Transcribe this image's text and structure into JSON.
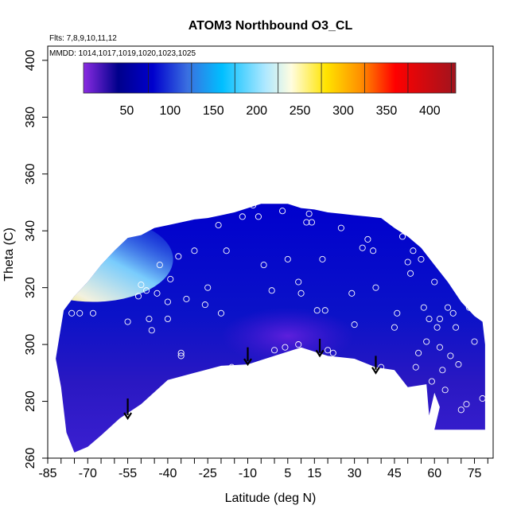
{
  "chart_data": {
    "type": "heatmap",
    "title": "ATOM3 Northbound O3_CL",
    "annotations": {
      "flights": "Flts: 7,8,9,10,11,12",
      "dates": "MMDD: 1014,1017,1019,1020,1023,1025"
    },
    "xlabel": "Latitude (deg N)",
    "ylabel": "Theta (C)",
    "xlim": [
      -85,
      82
    ],
    "ylim": [
      260,
      405
    ],
    "x_ticks": [
      -85,
      -70,
      -55,
      -40,
      -25,
      -10,
      5,
      15,
      30,
      45,
      60,
      75
    ],
    "y_ticks": [
      260,
      280,
      300,
      320,
      340,
      360,
      380,
      400
    ],
    "grid": false,
    "colorbar": {
      "position": "top",
      "labels": [
        50,
        100,
        150,
        200,
        250,
        300,
        350,
        400
      ],
      "range": [
        0,
        430
      ],
      "stops": [
        {
          "value": 0,
          "color": "#8a2be2"
        },
        {
          "value": 40,
          "color": "#00008b"
        },
        {
          "value": 80,
          "color": "#0000cd"
        },
        {
          "value": 120,
          "color": "#3a6fe0"
        },
        {
          "value": 160,
          "color": "#00bfff"
        },
        {
          "value": 210,
          "color": "#aee8ff"
        },
        {
          "value": 240,
          "color": "#fffde0"
        },
        {
          "value": 280,
          "color": "#ffe400"
        },
        {
          "value": 320,
          "color": "#ff9000"
        },
        {
          "value": 360,
          "color": "#ff0000"
        },
        {
          "value": 430,
          "color": "#a0141e"
        }
      ]
    },
    "coverage_top": [
      [
        -79,
        312
      ],
      [
        -75,
        317
      ],
      [
        -70,
        322
      ],
      [
        -65,
        328
      ],
      [
        -60,
        333
      ],
      [
        -55,
        337.5
      ],
      [
        -50,
        338.5
      ],
      [
        -45,
        341
      ],
      [
        -40,
        342
      ],
      [
        -35,
        343
      ],
      [
        -30,
        344
      ],
      [
        -25,
        344.5
      ],
      [
        -20,
        345.5
      ],
      [
        -15,
        346.5
      ],
      [
        -10,
        348
      ],
      [
        -5,
        349.5
      ],
      [
        5,
        349.5
      ],
      [
        10,
        348
      ],
      [
        15,
        347.5
      ],
      [
        20,
        346.5
      ],
      [
        25,
        346
      ],
      [
        30,
        345.5
      ],
      [
        35,
        345
      ],
      [
        40,
        344.5
      ],
      [
        45,
        341
      ],
      [
        50,
        338
      ],
      [
        55,
        334
      ],
      [
        60,
        328
      ],
      [
        65,
        322
      ],
      [
        70,
        315
      ],
      [
        75,
        310
      ],
      [
        78,
        308
      ],
      [
        79,
        300
      ]
    ],
    "coverage_bottom": [
      [
        79,
        270
      ],
      [
        60,
        270
      ],
      [
        62,
        278
      ],
      [
        60,
        283
      ],
      [
        58,
        275
      ],
      [
        57,
        286
      ],
      [
        50,
        285
      ],
      [
        45,
        291
      ],
      [
        38,
        292
      ],
      [
        30,
        295
      ],
      [
        20,
        296
      ],
      [
        10,
        299
      ],
      [
        0,
        296
      ],
      [
        -10,
        293
      ],
      [
        -20,
        292.5
      ],
      [
        -30,
        290
      ],
      [
        -40,
        287.5
      ],
      [
        -50,
        279
      ],
      [
        -58,
        274
      ],
      [
        -65,
        268
      ],
      [
        -70,
        264
      ],
      [
        -75,
        262
      ],
      [
        -78,
        269
      ],
      [
        -80,
        285
      ],
      [
        -82,
        295
      ]
    ],
    "observations": [
      {
        "lat": -76,
        "theta": 311
      },
      {
        "lat": -73,
        "theta": 311
      },
      {
        "lat": -68,
        "theta": 311
      },
      {
        "lat": -55,
        "theta": 308
      },
      {
        "lat": -51,
        "theta": 317
      },
      {
        "lat": -50,
        "theta": 321
      },
      {
        "lat": -48,
        "theta": 319
      },
      {
        "lat": -47,
        "theta": 309
      },
      {
        "lat": -46,
        "theta": 305
      },
      {
        "lat": -44,
        "theta": 318
      },
      {
        "lat": -43,
        "theta": 328
      },
      {
        "lat": -40,
        "theta": 315
      },
      {
        "lat": -40,
        "theta": 309
      },
      {
        "lat": -39,
        "theta": 323
      },
      {
        "lat": -36,
        "theta": 331
      },
      {
        "lat": -35,
        "theta": 297
      },
      {
        "lat": -35,
        "theta": 296
      },
      {
        "lat": -33,
        "theta": 316
      },
      {
        "lat": -30,
        "theta": 333
      },
      {
        "lat": -26,
        "theta": 314
      },
      {
        "lat": -25,
        "theta": 320
      },
      {
        "lat": -21,
        "theta": 342
      },
      {
        "lat": -20,
        "theta": 311
      },
      {
        "lat": -18,
        "theta": 333
      },
      {
        "lat": -16,
        "theta": 292
      },
      {
        "lat": -12,
        "theta": 345
      },
      {
        "lat": -8,
        "theta": 349
      },
      {
        "lat": -6,
        "theta": 345
      },
      {
        "lat": -4,
        "theta": 328
      },
      {
        "lat": -1,
        "theta": 319
      },
      {
        "lat": 0,
        "theta": 298
      },
      {
        "lat": 3,
        "theta": 347
      },
      {
        "lat": 5,
        "theta": 330
      },
      {
        "lat": 4,
        "theta": 299
      },
      {
        "lat": 9,
        "theta": 322
      },
      {
        "lat": 9,
        "theta": 300
      },
      {
        "lat": 10,
        "theta": 318
      },
      {
        "lat": 12,
        "theta": 343
      },
      {
        "lat": 13,
        "theta": 346
      },
      {
        "lat": 14,
        "theta": 343
      },
      {
        "lat": 16,
        "theta": 312
      },
      {
        "lat": 18,
        "theta": 330
      },
      {
        "lat": 19,
        "theta": 312
      },
      {
        "lat": 20,
        "theta": 298
      },
      {
        "lat": 22,
        "theta": 297
      },
      {
        "lat": 25,
        "theta": 341
      },
      {
        "lat": 29,
        "theta": 318
      },
      {
        "lat": 30,
        "theta": 307
      },
      {
        "lat": 33,
        "theta": 334
      },
      {
        "lat": 35,
        "theta": 337
      },
      {
        "lat": 37,
        "theta": 333
      },
      {
        "lat": 38,
        "theta": 320
      },
      {
        "lat": 40,
        "theta": 292
      },
      {
        "lat": 43,
        "theta": 345
      },
      {
        "lat": 45,
        "theta": 306
      },
      {
        "lat": 46,
        "theta": 311
      },
      {
        "lat": 48,
        "theta": 338
      },
      {
        "lat": 50,
        "theta": 329
      },
      {
        "lat": 51,
        "theta": 325
      },
      {
        "lat": 52,
        "theta": 333
      },
      {
        "lat": 53,
        "theta": 292
      },
      {
        "lat": 54,
        "theta": 297
      },
      {
        "lat": 55,
        "theta": 330
      },
      {
        "lat": 56,
        "theta": 313
      },
      {
        "lat": 57,
        "theta": 301
      },
      {
        "lat": 58,
        "theta": 309
      },
      {
        "lat": 59,
        "theta": 287
      },
      {
        "lat": 60,
        "theta": 322
      },
      {
        "lat": 61,
        "theta": 306
      },
      {
        "lat": 62,
        "theta": 299
      },
      {
        "lat": 62,
        "theta": 309
      },
      {
        "lat": 63,
        "theta": 291
      },
      {
        "lat": 64,
        "theta": 284
      },
      {
        "lat": 65,
        "theta": 313
      },
      {
        "lat": 66,
        "theta": 296
      },
      {
        "lat": 67,
        "theta": 311
      },
      {
        "lat": 68,
        "theta": 306
      },
      {
        "lat": 69,
        "theta": 293
      },
      {
        "lat": 70,
        "theta": 277
      },
      {
        "lat": 71,
        "theta": 319
      },
      {
        "lat": 72,
        "theta": 279
      },
      {
        "lat": 73,
        "theta": 313
      },
      {
        "lat": 75,
        "theta": 301
      },
      {
        "lat": 78,
        "theta": 281
      }
    ],
    "arrows": [
      {
        "lat": -55,
        "theta_top": 281,
        "theta_bottom": 274
      },
      {
        "lat": -10,
        "theta_top": 299,
        "theta_bottom": 293
      },
      {
        "lat": 17,
        "theta_top": 302,
        "theta_bottom": 296
      },
      {
        "lat": 38,
        "theta_top": 296,
        "theta_bottom": 290
      }
    ]
  }
}
